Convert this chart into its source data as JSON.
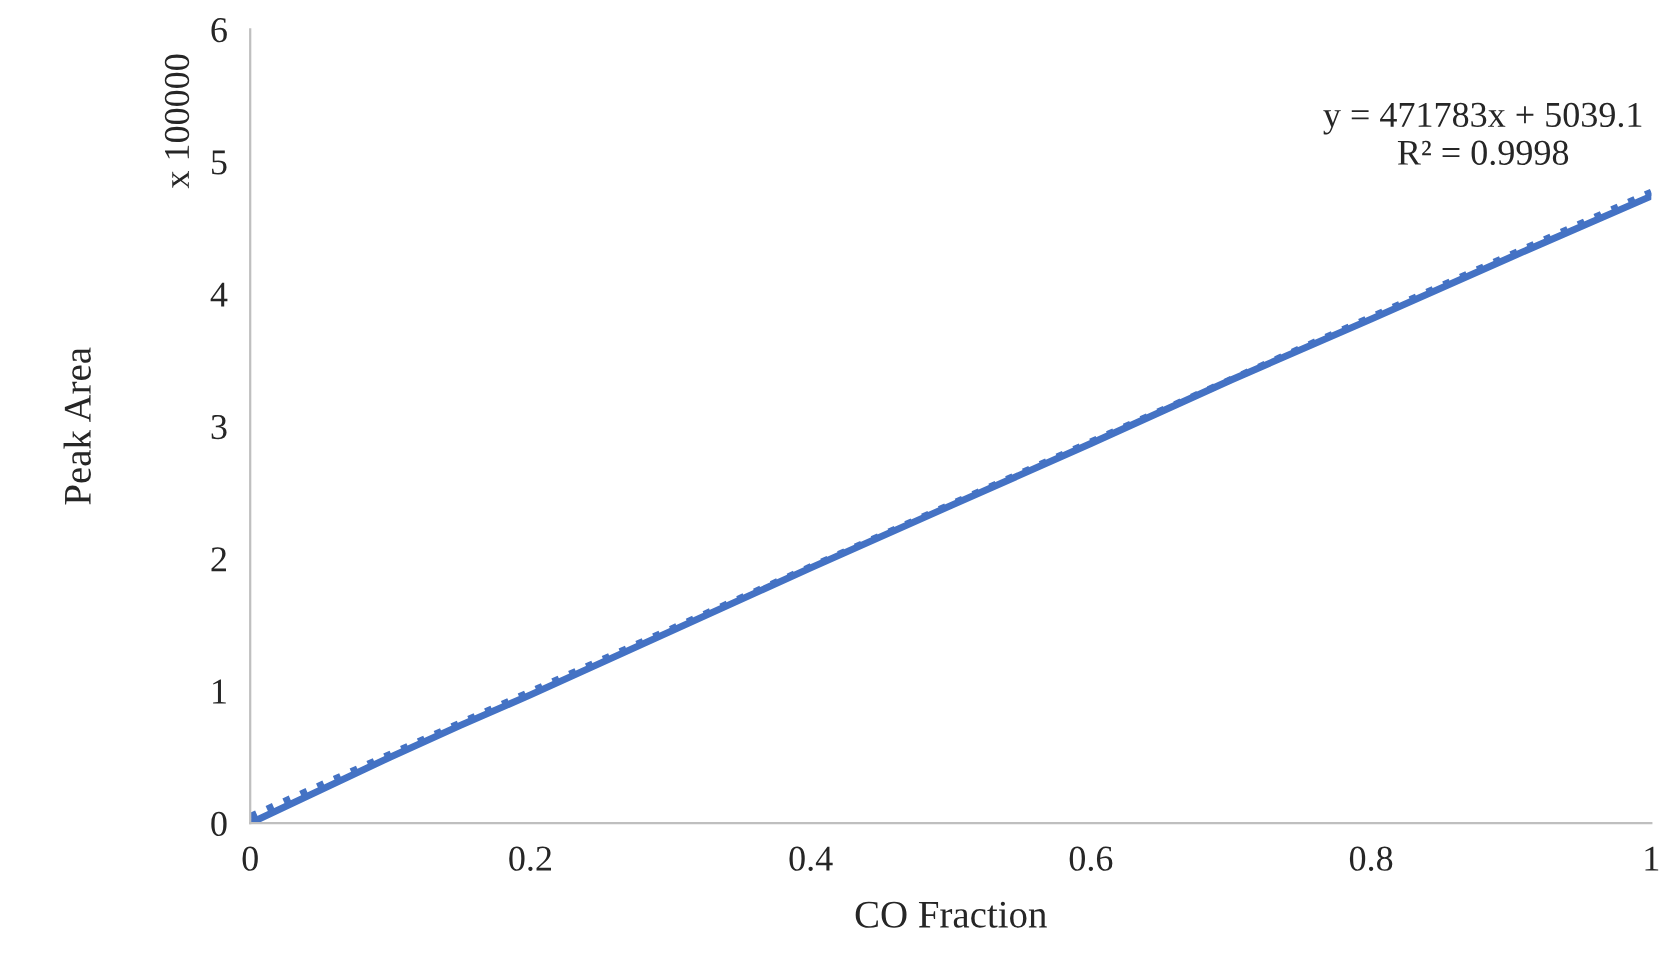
{
  "chart_data": {
    "type": "line",
    "xlabel": "CO Fraction",
    "ylabel": "Peak Area",
    "xlim": [
      0,
      1
    ],
    "xticks": [
      0,
      0.2,
      0.4,
      0.6,
      0.8,
      1
    ],
    "ylim": [
      0,
      6
    ],
    "yticks": [
      0,
      1,
      2,
      3,
      4,
      5,
      6
    ],
    "grid": false,
    "legend": false,
    "marker": "none",
    "series": [
      {
        "color": "#4472c4",
        "line_style": "solid",
        "x": [
          0,
          0.05,
          0.1,
          0.15,
          0.2,
          0.3,
          0.4,
          0.5,
          0.6,
          0.7,
          0.8,
          0.9,
          1.0
        ],
        "values": [
          0,
          0.25,
          0.5,
          0.74,
          0.97,
          1.45,
          1.93,
          2.4,
          2.87,
          3.35,
          3.81,
          4.28,
          4.74
        ]
      },
      {
        "color": "#4472c4",
        "line_style": "dotted",
        "x": [
          0,
          1
        ],
        "values": [
          0.05,
          4.77
        ]
      }
    ],
    "annotations": [
      "x 100000",
      "y = 471783x + 5039.1\nR² = 0.9998"
    ]
  }
}
